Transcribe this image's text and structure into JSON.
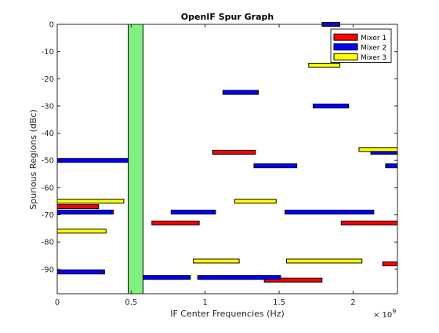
{
  "chart_data": {
    "type": "bar",
    "subtype": "horizontal-range",
    "title": "OpenIF Spur Graph",
    "xlabel": "IF Center Frequencies (Hz)",
    "ylabel": "Spurious Regions (dBc)",
    "x_exponent_label": "× 10",
    "x_exponent_power": "9",
    "xlim": [
      0,
      2.3
    ],
    "ylim": [
      -99,
      0
    ],
    "y_reversed": true,
    "xticks": [
      0,
      0.5,
      1,
      1.5,
      2
    ],
    "xtick_labels": [
      "0",
      "0.5",
      "1",
      "1.5",
      "2"
    ],
    "yticks": [
      0,
      -10,
      -20,
      -30,
      -40,
      -50,
      -60,
      -70,
      -80,
      -90
    ],
    "ytick_labels": [
      "0",
      "-10",
      "-20",
      "-30",
      "-40",
      "-50",
      "-60",
      "-70",
      "-80",
      "-90"
    ],
    "legend_position": "top-right",
    "if_band": {
      "x": [
        0.48,
        0.58
      ],
      "y": [
        0,
        -99
      ],
      "color": "#80f080"
    },
    "series": [
      {
        "name": "Mixer 1",
        "color": "#ff0000",
        "segments": [
          {
            "x": [
              1.05,
              1.34
            ],
            "y": -47
          },
          {
            "x": [
              0.0,
              0.28
            ],
            "y": -67
          },
          {
            "x": [
              0.0,
              0.38
            ],
            "y": -69
          },
          {
            "x": [
              0.64,
              0.96
            ],
            "y": -73
          },
          {
            "x": [
              1.92,
              2.3
            ],
            "y": -73
          },
          {
            "x": [
              2.2,
              2.3
            ],
            "y": -88
          },
          {
            "x": [
              1.4,
              1.79
            ],
            "y": -94
          }
        ]
      },
      {
        "name": "Mixer 2",
        "color": "#0000ff",
        "segments": [
          {
            "x": [
              1.79,
              1.91
            ],
            "y": 0
          },
          {
            "x": [
              1.12,
              1.36
            ],
            "y": -25
          },
          {
            "x": [
              1.73,
              1.97
            ],
            "y": -30
          },
          {
            "x": [
              2.12,
              2.3
            ],
            "y": -47
          },
          {
            "x": [
              0.0,
              0.48
            ],
            "y": -50
          },
          {
            "x": [
              1.33,
              1.62
            ],
            "y": -52
          },
          {
            "x": [
              2.22,
              2.3
            ],
            "y": -52
          },
          {
            "x": [
              0.0,
              0.37
            ],
            "y": -69
          },
          {
            "x": [
              0.77,
              1.07
            ],
            "y": -69
          },
          {
            "x": [
              1.54,
              2.14
            ],
            "y": -69
          },
          {
            "x": [
              0.0,
              0.32
            ],
            "y": -91
          },
          {
            "x": [
              0.58,
              0.9
            ],
            "y": -93
          },
          {
            "x": [
              0.95,
              1.51
            ],
            "y": -93
          }
        ]
      },
      {
        "name": "Mixer 3",
        "color": "#ffff00",
        "segments": [
          {
            "x": [
              1.7,
              1.91
            ],
            "y": -15
          },
          {
            "x": [
              2.04,
              2.3
            ],
            "y": -46
          },
          {
            "x": [
              1.2,
              1.48
            ],
            "y": -65
          },
          {
            "x": [
              0.0,
              0.45
            ],
            "y": -65
          },
          {
            "x": [
              0.0,
              0.33
            ],
            "y": -76
          },
          {
            "x": [
              0.92,
              1.23
            ],
            "y": -87
          },
          {
            "x": [
              1.55,
              2.06
            ],
            "y": -87
          }
        ]
      }
    ]
  }
}
